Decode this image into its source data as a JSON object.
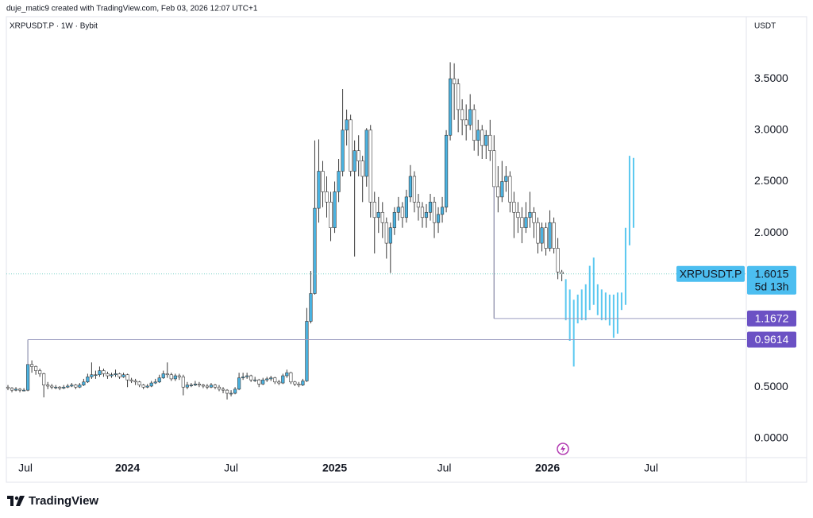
{
  "chart_data": {
    "type": "candlestick",
    "attribution": "duje_matic9 created with TradingView.com, Feb 03, 2026 12:07 UTC+1",
    "title": "XRPUSDT.P · 1W · Bybit",
    "y_unit": "USDT",
    "brand": "TradingView",
    "countdown": "5d 13h",
    "up_color": "#4ab3e2",
    "down_color": "#ffffff",
    "wick_color": "#3a3a3a",
    "series": [
      {
        "name": "XRPUSDT.P",
        "x": [
          0,
          1,
          2,
          3,
          4,
          5,
          6,
          7,
          8,
          9,
          10,
          11,
          12,
          13,
          14,
          15,
          16,
          17,
          18,
          19,
          20,
          21,
          22,
          23,
          24,
          25,
          26,
          27,
          28,
          29,
          30,
          31,
          32,
          33,
          34,
          35,
          36,
          37,
          38,
          39,
          40,
          41,
          42,
          43,
          44,
          45,
          46,
          47,
          48,
          49,
          50,
          51,
          52,
          53,
          54,
          55,
          56,
          57,
          58,
          59,
          60,
          61,
          62,
          63,
          64,
          65,
          66,
          67,
          68,
          69,
          70,
          71,
          72,
          73,
          74,
          75,
          76,
          77,
          78,
          79,
          80,
          81,
          82,
          83,
          84,
          85,
          86,
          87,
          88,
          89,
          90,
          91,
          92,
          93,
          94,
          95,
          96,
          97,
          98,
          99,
          100,
          101,
          102,
          103,
          104,
          105,
          106,
          107,
          108,
          109,
          110,
          111,
          112,
          113,
          114,
          115,
          116,
          117,
          118,
          119,
          120,
          121,
          122,
          123,
          124,
          125,
          126,
          127,
          128,
          129,
          130,
          131,
          132,
          133,
          134,
          135,
          136,
          137,
          138,
          139
        ],
        "open": [
          0.5,
          0.49,
          0.47,
          0.48,
          0.47,
          0.47,
          0.72,
          0.7,
          0.66,
          0.63,
          0.52,
          0.51,
          0.5,
          0.5,
          0.49,
          0.5,
          0.51,
          0.52,
          0.5,
          0.52,
          0.55,
          0.6,
          0.62,
          0.62,
          0.66,
          0.63,
          0.61,
          0.62,
          0.63,
          0.6,
          0.62,
          0.57,
          0.56,
          0.55,
          0.52,
          0.5,
          0.51,
          0.54,
          0.55,
          0.59,
          0.63,
          0.62,
          0.58,
          0.61,
          0.6,
          0.5,
          0.52,
          0.52,
          0.53,
          0.52,
          0.51,
          0.5,
          0.52,
          0.5,
          0.48,
          0.47,
          0.44,
          0.44,
          0.48,
          0.59,
          0.6,
          0.61,
          0.57,
          0.57,
          0.53,
          0.57,
          0.58,
          0.59,
          0.55,
          0.54,
          0.61,
          0.64,
          0.55,
          0.53,
          0.52,
          0.56,
          1.14,
          1.41,
          2.24,
          2.6,
          2.4,
          2.3,
          2.05,
          2.4,
          2.6,
          3.0,
          3.1,
          2.6,
          2.8,
          2.7,
          2.55,
          3.0,
          2.3,
          2.15,
          2.2,
          2.1,
          1.9,
          2.05,
          2.2,
          2.25,
          2.15,
          2.35,
          2.55,
          2.3,
          2.25,
          2.15,
          2.2,
          2.3,
          2.1,
          2.18,
          2.25,
          2.95,
          3.5,
          3.45,
          3.2,
          3.1,
          3.05,
          3.2,
          2.9,
          3.0,
          2.85,
          2.95,
          2.8,
          2.45,
          2.35,
          2.5,
          2.55,
          2.3,
          2.2,
          2.15,
          2.05,
          2.15,
          2.2,
          2.1,
          1.9,
          2.05,
          1.85,
          2.1,
          1.85,
          1.62
        ],
        "high": [
          0.52,
          0.5,
          0.5,
          0.49,
          0.49,
          0.9614,
          0.76,
          0.71,
          0.68,
          0.64,
          0.55,
          0.53,
          0.52,
          0.51,
          0.52,
          0.53,
          0.54,
          0.53,
          0.54,
          0.58,
          0.63,
          0.74,
          0.66,
          0.7,
          0.68,
          0.65,
          0.64,
          0.67,
          0.64,
          0.64,
          0.63,
          0.59,
          0.58,
          0.56,
          0.53,
          0.53,
          0.56,
          0.58,
          0.62,
          0.66,
          0.74,
          0.64,
          0.63,
          0.63,
          0.62,
          0.55,
          0.54,
          0.56,
          0.55,
          0.53,
          0.53,
          0.54,
          0.53,
          0.52,
          0.5,
          0.48,
          0.47,
          0.5,
          0.64,
          0.64,
          0.64,
          0.62,
          0.6,
          0.58,
          0.59,
          0.6,
          0.61,
          0.6,
          0.57,
          0.63,
          0.67,
          0.65,
          0.56,
          0.55,
          0.58,
          1.27,
          1.63,
          2.9,
          2.91,
          2.7,
          2.55,
          2.4,
          2.5,
          2.72,
          3.4,
          3.2,
          3.15,
          2.9,
          2.95,
          2.75,
          3.02,
          3.05,
          2.4,
          2.35,
          2.3,
          2.15,
          2.1,
          2.25,
          2.35,
          2.3,
          2.42,
          2.66,
          2.6,
          2.38,
          2.3,
          2.28,
          2.38,
          2.35,
          2.25,
          2.35,
          3.0,
          3.66,
          3.65,
          3.5,
          3.3,
          3.25,
          3.35,
          3.25,
          3.1,
          3.05,
          3.0,
          3.1,
          2.95,
          2.65,
          2.7,
          2.65,
          2.6,
          2.4,
          2.3,
          2.25,
          2.3,
          2.4,
          2.25,
          2.15,
          2.1,
          2.1,
          2.22,
          2.15,
          1.95,
          1.64
        ],
        "low": [
          0.47,
          0.45,
          0.46,
          0.45,
          0.46,
          0.46,
          0.64,
          0.62,
          0.6,
          0.4,
          0.48,
          0.48,
          0.48,
          0.47,
          0.48,
          0.49,
          0.5,
          0.48,
          0.49,
          0.51,
          0.54,
          0.58,
          0.58,
          0.6,
          0.6,
          0.58,
          0.59,
          0.6,
          0.58,
          0.59,
          0.5,
          0.54,
          0.52,
          0.5,
          0.48,
          0.49,
          0.5,
          0.53,
          0.54,
          0.58,
          0.59,
          0.56,
          0.56,
          0.57,
          0.42,
          0.48,
          0.5,
          0.51,
          0.5,
          0.49,
          0.48,
          0.49,
          0.48,
          0.46,
          0.44,
          0.38,
          0.41,
          0.43,
          0.47,
          0.57,
          0.58,
          0.55,
          0.55,
          0.5,
          0.52,
          0.55,
          0.56,
          0.53,
          0.52,
          0.53,
          0.59,
          0.53,
          0.51,
          0.5,
          0.51,
          0.55,
          1.12,
          1.4,
          2.1,
          2.25,
          2.15,
          1.92,
          2.0,
          2.3,
          2.55,
          2.85,
          2.55,
          1.77,
          2.55,
          2.3,
          2.45,
          2.15,
          1.8,
          2.0,
          1.95,
          1.75,
          1.61,
          1.98,
          2.12,
          2.05,
          2.1,
          2.3,
          2.2,
          2.12,
          2.05,
          2.05,
          2.12,
          1.95,
          2.0,
          2.1,
          2.2,
          2.9,
          3.1,
          2.98,
          2.95,
          2.9,
          3.0,
          2.8,
          2.75,
          2.72,
          2.72,
          2.7,
          1.1672,
          2.2,
          2.3,
          2.4,
          2.2,
          1.95,
          2.0,
          1.9,
          2.0,
          2.05,
          1.95,
          1.8,
          1.82,
          1.78,
          1.82,
          1.8,
          1.55,
          1.53
        ],
        "close": [
          0.49,
          0.47,
          0.48,
          0.47,
          0.47,
          0.72,
          0.7,
          0.66,
          0.63,
          0.52,
          0.51,
          0.5,
          0.5,
          0.49,
          0.5,
          0.51,
          0.52,
          0.5,
          0.52,
          0.55,
          0.6,
          0.62,
          0.62,
          0.66,
          0.63,
          0.61,
          0.62,
          0.63,
          0.6,
          0.62,
          0.57,
          0.56,
          0.55,
          0.52,
          0.5,
          0.51,
          0.54,
          0.55,
          0.59,
          0.63,
          0.62,
          0.58,
          0.61,
          0.6,
          0.5,
          0.52,
          0.52,
          0.53,
          0.52,
          0.51,
          0.5,
          0.52,
          0.5,
          0.48,
          0.47,
          0.44,
          0.44,
          0.48,
          0.59,
          0.6,
          0.61,
          0.57,
          0.57,
          0.53,
          0.57,
          0.58,
          0.59,
          0.55,
          0.54,
          0.61,
          0.64,
          0.55,
          0.53,
          0.52,
          0.56,
          1.14,
          1.41,
          2.24,
          2.6,
          2.4,
          2.3,
          2.05,
          2.4,
          2.6,
          3.0,
          3.1,
          2.6,
          2.8,
          2.7,
          2.55,
          3.0,
          2.3,
          2.15,
          2.2,
          2.1,
          1.9,
          2.05,
          2.2,
          2.25,
          2.15,
          2.35,
          2.55,
          2.3,
          2.25,
          2.15,
          2.2,
          2.3,
          2.1,
          2.18,
          2.25,
          2.95,
          3.5,
          3.45,
          3.2,
          3.1,
          3.05,
          3.2,
          2.9,
          3.0,
          2.85,
          2.95,
          2.8,
          2.45,
          2.35,
          2.5,
          2.55,
          2.3,
          2.2,
          2.15,
          2.05,
          2.15,
          2.2,
          2.1,
          1.9,
          2.05,
          1.85,
          2.1,
          1.85,
          1.62,
          1.6015
        ]
      }
    ],
    "projection": {
      "color": "#5bc8f0",
      "x": [
        140,
        141,
        142,
        143,
        144,
        145,
        146,
        147,
        148,
        149,
        150,
        151,
        152,
        153,
        154,
        155,
        156,
        157
      ],
      "low": [
        1.15,
        0.95,
        0.7,
        1.12,
        1.15,
        1.15,
        1.25,
        1.3,
        1.2,
        1.15,
        1.15,
        1.1,
        0.98,
        1.02,
        1.25,
        1.3,
        1.88,
        2.05
      ],
      "high": [
        1.55,
        1.45,
        1.35,
        1.4,
        1.45,
        1.5,
        1.68,
        1.76,
        1.5,
        1.45,
        1.42,
        1.4,
        1.4,
        1.42,
        1.42,
        2.05,
        2.75,
        2.73
      ]
    },
    "price_line_color": "#7fd3c9",
    "price_tag_color": "#4cbef0",
    "levels": [
      {
        "value": 1.1672,
        "color": "#6b51c4",
        "line_color": "#9a9cc0"
      },
      {
        "value": 0.9614,
        "color": "#6b51c4",
        "line_color": "#9a9cc0"
      }
    ],
    "xlim": [
      -0.4,
      185.3
    ],
    "xticks": [
      {
        "value": 4.4,
        "label": "Jul"
      },
      {
        "value": 30,
        "label": "2024"
      },
      {
        "value": 56,
        "label": "Jul"
      },
      {
        "value": 82,
        "label": "2025"
      },
      {
        "value": 109.5,
        "label": "Jul"
      },
      {
        "value": 135.4,
        "label": "2026"
      },
      {
        "value": 161.4,
        "label": "Jul"
      }
    ],
    "ylim": [
      -0.186,
      3.918
    ],
    "yticks": [
      {
        "value": 0,
        "label": "0.0000"
      },
      {
        "value": 0.5,
        "label": "0.5000"
      },
      {
        "value": 2,
        "label": "2.0000"
      },
      {
        "value": 2.5,
        "label": "2.5000"
      },
      {
        "value": 3,
        "label": "3.0000"
      },
      {
        "value": 3.5,
        "label": "3.5000"
      }
    ]
  }
}
